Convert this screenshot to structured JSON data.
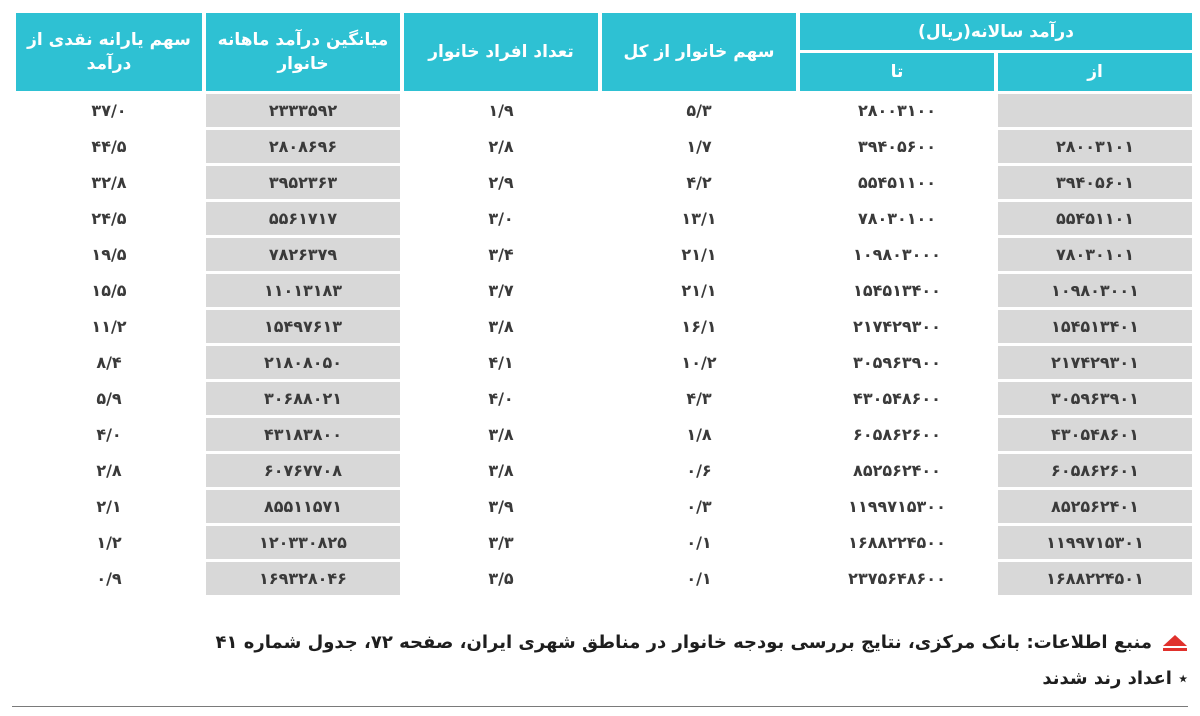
{
  "headers": {
    "annual_income": "درآمد سالانه(ریال)",
    "from": "از",
    "to": "تا",
    "share_households": "سهم خانوار از کل",
    "household_size": "تعداد افراد خانوار",
    "avg_monthly_income": "میانگین درآمد ماهانه خانوار",
    "cash_subsidy_share": "سهم یارانه نقدی از درآمد"
  },
  "rows": [
    {
      "from": "",
      "to": "۲۸۰۰۳۱۰۰",
      "share": "۵/۳",
      "size": "۱/۹",
      "avg": "۲۳۳۳۵۹۲",
      "subsidy": "۳۷/۰"
    },
    {
      "from": "۲۸۰۰۳۱۰۱",
      "to": "۳۹۴۰۵۶۰۰",
      "share": "۱/۷",
      "size": "۲/۸",
      "avg": "۲۸۰۸۶۹۶",
      "subsidy": "۴۴/۵"
    },
    {
      "from": "۳۹۴۰۵۶۰۱",
      "to": "۵۵۴۵۱۱۰۰",
      "share": "۴/۲",
      "size": "۲/۹",
      "avg": "۳۹۵۲۳۶۳",
      "subsidy": "۳۲/۸"
    },
    {
      "from": "۵۵۴۵۱۱۰۱",
      "to": "۷۸۰۳۰۱۰۰",
      "share": "۱۳/۱",
      "size": "۳/۰",
      "avg": "۵۵۶۱۷۱۷",
      "subsidy": "۲۴/۵"
    },
    {
      "from": "۷۸۰۳۰۱۰۱",
      "to": "۱۰۹۸۰۳۰۰۰",
      "share": "۲۱/۱",
      "size": "۳/۴",
      "avg": "۷۸۲۶۳۷۹",
      "subsidy": "۱۹/۵"
    },
    {
      "from": "۱۰۹۸۰۳۰۰۱",
      "to": "۱۵۴۵۱۳۴۰۰",
      "share": "۲۱/۱",
      "size": "۳/۷",
      "avg": "۱۱۰۱۳۱۸۳",
      "subsidy": "۱۵/۵"
    },
    {
      "from": "۱۵۴۵۱۳۴۰۱",
      "to": "۲۱۷۴۲۹۳۰۰",
      "share": "۱۶/۱",
      "size": "۳/۸",
      "avg": "۱۵۴۹۷۶۱۳",
      "subsidy": "۱۱/۲"
    },
    {
      "from": "۲۱۷۴۲۹۳۰۱",
      "to": "۳۰۵۹۶۳۹۰۰",
      "share": "۱۰/۲",
      "size": "۴/۱",
      "avg": "۲۱۸۰۸۰۵۰",
      "subsidy": "۸/۴"
    },
    {
      "from": "۳۰۵۹۶۳۹۰۱",
      "to": "۴۳۰۵۴۸۶۰۰",
      "share": "۴/۳",
      "size": "۴/۰",
      "avg": "۳۰۶۸۸۰۲۱",
      "subsidy": "۵/۹"
    },
    {
      "from": "۴۳۰۵۴۸۶۰۱",
      "to": "۶۰۵۸۶۲۶۰۰",
      "share": "۱/۸",
      "size": "۳/۸",
      "avg": "۴۳۱۸۳۸۰۰",
      "subsidy": "۴/۰"
    },
    {
      "from": "۶۰۵۸۶۲۶۰۱",
      "to": "۸۵۲۵۶۲۴۰۰",
      "share": "۰/۶",
      "size": "۳/۸",
      "avg": "۶۰۷۶۷۷۰۸",
      "subsidy": "۲/۸"
    },
    {
      "from": "۸۵۲۵۶۲۴۰۱",
      "to": "۱۱۹۹۷۱۵۳۰۰",
      "share": "۰/۳",
      "size": "۳/۹",
      "avg": "۸۵۵۱۱۵۷۱",
      "subsidy": "۲/۱"
    },
    {
      "from": "۱۱۹۹۷۱۵۳۰۱",
      "to": "۱۶۸۸۲۲۴۵۰۰",
      "share": "۰/۱",
      "size": "۳/۳",
      "avg": "۱۲۰۳۳۰۸۲۵",
      "subsidy": "۱/۲"
    },
    {
      "from": "۱۶۸۸۲۲۴۵۰۱",
      "to": "۲۳۷۵۶۴۸۶۰۰",
      "share": "۰/۱",
      "size": "۳/۵",
      "avg": "۱۶۹۳۲۸۰۴۶",
      "subsidy": "۰/۹"
    }
  ],
  "footer": {
    "source": "منبع اطلاعات: بانک مرکزی، نتایج بررسی بودجه خانوار در مناطق شهری ایران، صفحه ۷۲، جدول شماره ۴۱",
    "note": "٭ اعداد رند شدند"
  },
  "colors": {
    "header_bg": "#2ec1d3",
    "gray_cell": "#d8d8d8",
    "marker_red": "#e0312c"
  }
}
